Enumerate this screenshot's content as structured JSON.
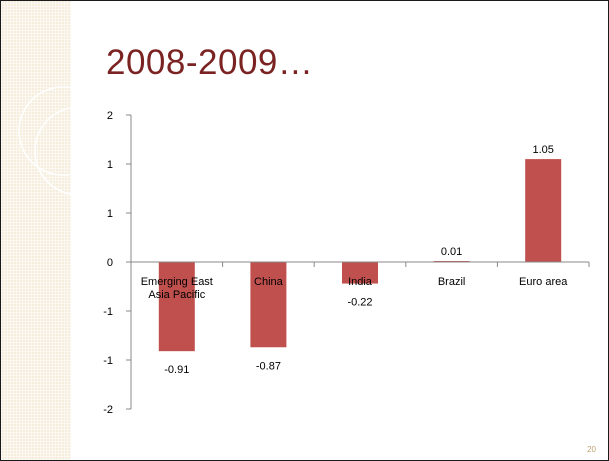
{
  "slide": {
    "title": "2008-2009…",
    "number": "20"
  },
  "colors": {
    "bar": "#c0504d",
    "title": "#7b2323",
    "band": "#f6eedd"
  },
  "chart_data": {
    "type": "bar",
    "categories": [
      [
        "Emerging East",
        "Asia Pacific"
      ],
      [
        "China"
      ],
      [
        "India"
      ],
      [
        "Brazil"
      ],
      [
        "Euro area"
      ]
    ],
    "values": [
      -0.91,
      -0.87,
      -0.22,
      0.01,
      1.05
    ],
    "value_labels": [
      "-0.91",
      "-0.87",
      "-0.22",
      "0.01",
      "1.05"
    ],
    "y_ticks": [
      "2",
      "1",
      "1",
      "0",
      "-1",
      "-1",
      "-2"
    ],
    "ylim": [
      -1.5,
      1.5
    ],
    "grid": false,
    "legend": "none"
  }
}
